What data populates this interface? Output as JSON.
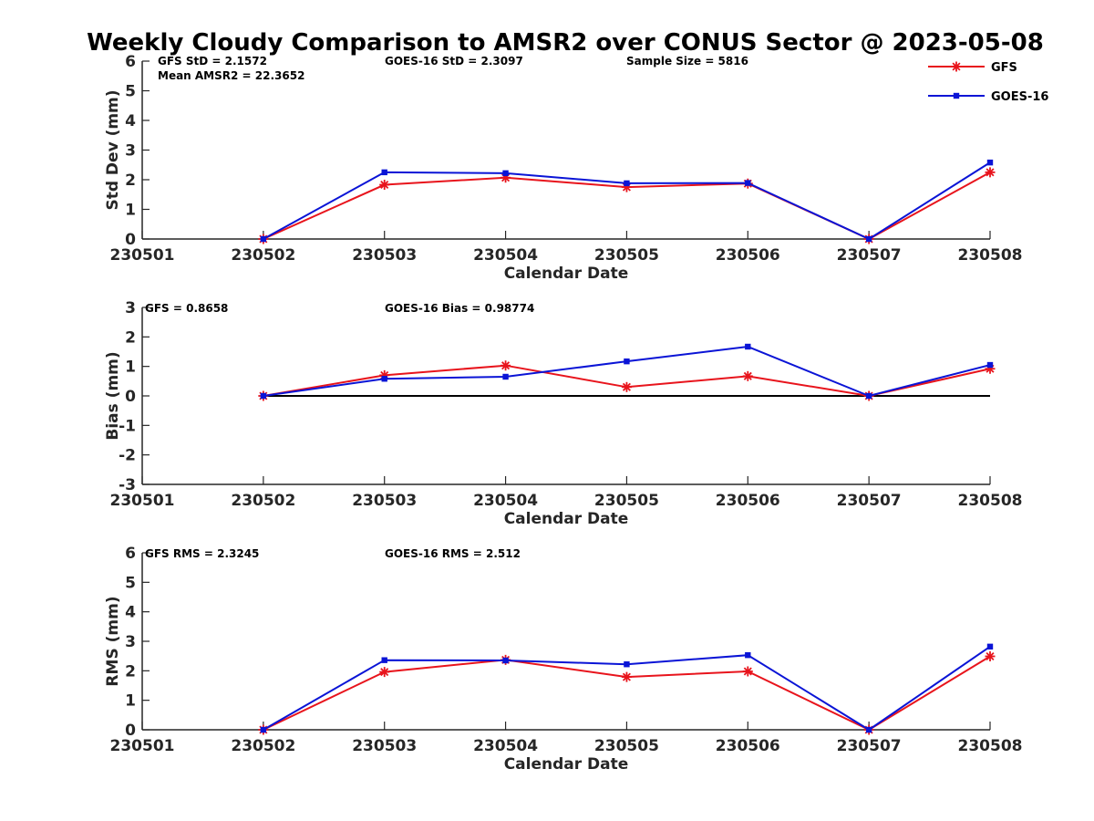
{
  "chart_data": {
    "type": "line",
    "title": "Weekly Cloudy Comparison to AMSR2 over CONUS Sector @ 2023-05-08",
    "colors": {
      "GFS": "#e8141c",
      "GOES-16": "#0a14d6",
      "axis": "#262626",
      "zero_line": "#000000"
    },
    "legend": {
      "placement": "top-right",
      "entries": [
        {
          "name": "GFS",
          "color": "#e8141c",
          "marker": "asterisk"
        },
        {
          "name": "GOES-16",
          "color": "#0a14d6",
          "marker": "square"
        }
      ]
    },
    "panels": [
      {
        "id": "std",
        "ylabel": "Std Dev (mm)",
        "xlabel": "Calendar Date",
        "ylim": [
          0,
          6
        ],
        "yticks": [
          0,
          1,
          2,
          3,
          4,
          5,
          6
        ],
        "xticks": [
          "230501",
          "230502",
          "230503",
          "230504",
          "230505",
          "230506",
          "230507",
          "230508"
        ],
        "zero_line": false,
        "annotations": [
          "GFS StD = 2.1572",
          "Mean AMSR2 = 22.3652",
          "GOES-16 StD = 2.3097",
          "Sample Size = 5816"
        ],
        "series": [
          {
            "name": "GFS",
            "x": [
              "230502",
              "230503",
              "230504",
              "230505",
              "230506",
              "230507",
              "230508"
            ],
            "values": [
              0.0,
              1.83,
              2.07,
              1.75,
              1.87,
              0.0,
              2.25
            ]
          },
          {
            "name": "GOES-16",
            "x": [
              "230502",
              "230503",
              "230504",
              "230505",
              "230506",
              "230507",
              "230508"
            ],
            "values": [
              0.0,
              2.25,
              2.22,
              1.88,
              1.89,
              0.0,
              2.58
            ]
          }
        ]
      },
      {
        "id": "bias",
        "ylabel": "Bias (mm)",
        "xlabel": "Calendar Date",
        "ylim": [
          -3,
          3
        ],
        "yticks": [
          -3,
          -2,
          -1,
          0,
          1,
          2,
          3
        ],
        "xticks": [
          "230501",
          "230502",
          "230503",
          "230504",
          "230505",
          "230506",
          "230507",
          "230508"
        ],
        "zero_line": true,
        "annotations": [
          "GFS = 0.8658",
          "GOES-16 Bias  = 0.98774"
        ],
        "series": [
          {
            "name": "GFS",
            "x": [
              "230502",
              "230503",
              "230504",
              "230505",
              "230506",
              "230507",
              "230508"
            ],
            "values": [
              0.0,
              0.7,
              1.03,
              0.3,
              0.67,
              0.0,
              0.92
            ]
          },
          {
            "name": "GOES-16",
            "x": [
              "230502",
              "230503",
              "230504",
              "230505",
              "230506",
              "230507",
              "230508"
            ],
            "values": [
              0.0,
              0.58,
              0.65,
              1.17,
              1.67,
              0.0,
              1.05
            ]
          }
        ]
      },
      {
        "id": "rms",
        "ylabel": "RMS (mm)",
        "xlabel": "Calendar Date",
        "ylim": [
          0,
          6
        ],
        "yticks": [
          0,
          1,
          2,
          3,
          4,
          5,
          6
        ],
        "xticks": [
          "230501",
          "230502",
          "230503",
          "230504",
          "230505",
          "230506",
          "230507",
          "230508"
        ],
        "zero_line": false,
        "annotations": [
          "GFS RMS = 2.3245",
          "GOES-16 RMS = 2.512"
        ],
        "series": [
          {
            "name": "GFS",
            "x": [
              "230502",
              "230503",
              "230504",
              "230505",
              "230506",
              "230507",
              "230508"
            ],
            "values": [
              0.0,
              1.96,
              2.37,
              1.79,
              1.98,
              0.0,
              2.49
            ]
          },
          {
            "name": "GOES-16",
            "x": [
              "230502",
              "230503",
              "230504",
              "230505",
              "230506",
              "230507",
              "230508"
            ],
            "values": [
              0.0,
              2.36,
              2.35,
              2.22,
              2.53,
              0.0,
              2.82
            ]
          }
        ]
      }
    ]
  }
}
